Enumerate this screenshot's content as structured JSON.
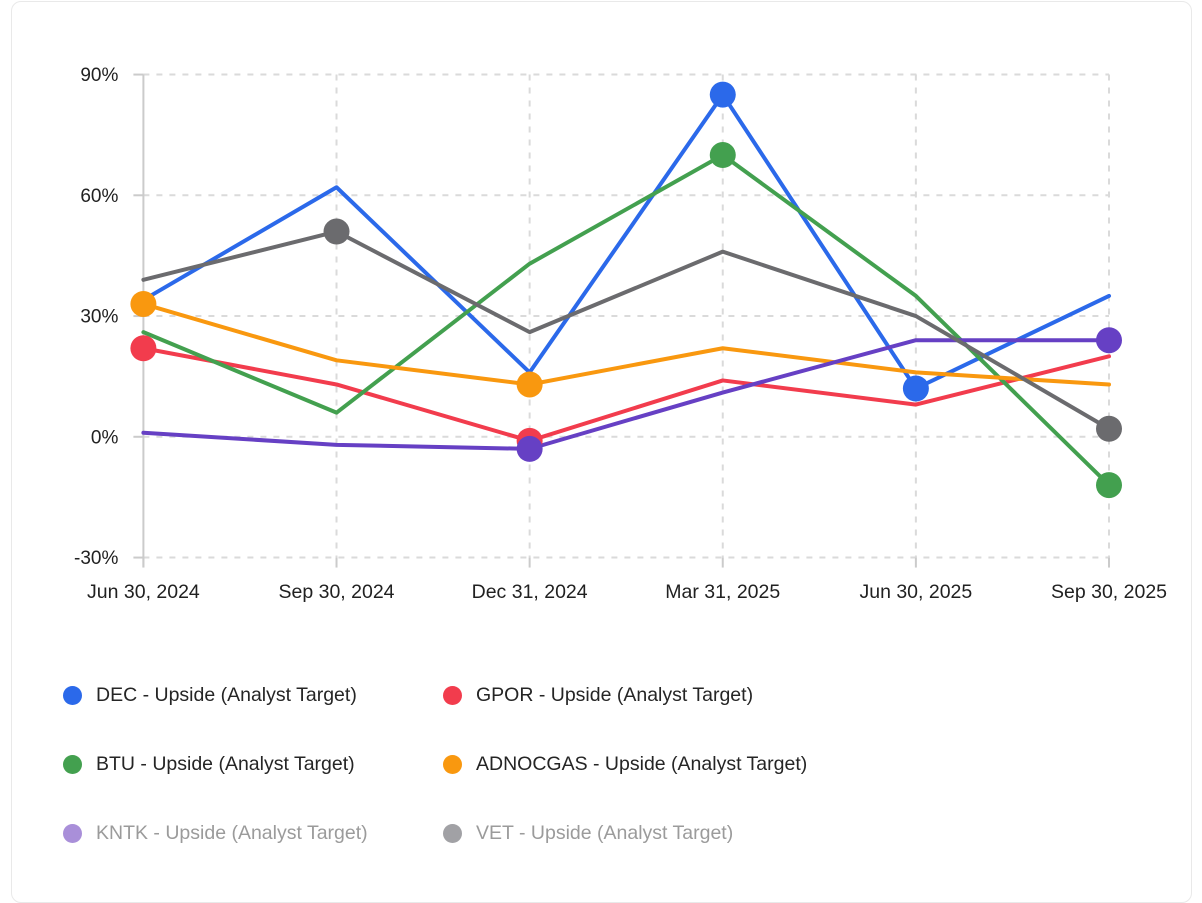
{
  "chart_data": {
    "type": "line",
    "title": "",
    "xlabel": "",
    "ylabel": "",
    "x_labels": [
      "Jun 30, 2024",
      "Sep 30, 2024",
      "Dec 31, 2024",
      "Mar 31, 2025",
      "Jun 30, 2025",
      "Sep 30, 2025"
    ],
    "y_tick_labels": [
      "90%",
      "60%",
      "30%",
      "0%",
      "-30%"
    ],
    "y_tick_values": [
      90,
      60,
      30,
      0,
      -30
    ],
    "ylim": [
      -30,
      90
    ],
    "grid": "dashed",
    "legend_position": "bottom-left-two-columns",
    "series": [
      {
        "ticker": "DEC",
        "label": "DEC - Upside (Analyst Target)",
        "color": "#2b69ea",
        "legend_dot_color": "#2b69ea",
        "muted": false,
        "values": [
          34,
          62,
          16,
          85,
          12,
          35
        ],
        "marker_indices": [
          3,
          4
        ]
      },
      {
        "ticker": "GPOR",
        "label": "GPOR - Upside (Analyst Target)",
        "color": "#f23c4d",
        "legend_dot_color": "#f23c4d",
        "muted": false,
        "values": [
          22,
          13,
          -1,
          14,
          8,
          20
        ],
        "marker_indices": [
          0,
          2
        ]
      },
      {
        "ticker": "BTU",
        "label": "BTU - Upside (Analyst Target)",
        "color": "#43a04f",
        "legend_dot_color": "#43a04f",
        "muted": false,
        "values": [
          26,
          6,
          43,
          70,
          35,
          -12
        ],
        "marker_indices": [
          3,
          5
        ]
      },
      {
        "ticker": "ADNOCGAS",
        "label": "ADNOCGAS - Upside (Analyst Target)",
        "color": "#f9980f",
        "legend_dot_color": "#f9980f",
        "muted": false,
        "values": [
          33,
          19,
          13,
          22,
          16,
          13
        ],
        "marker_indices": [
          0,
          2
        ]
      },
      {
        "ticker": "KNTK",
        "label": "KNTK - Upside (Analyst Target)",
        "color": "#6640c4",
        "legend_dot_color": "#a98fd9",
        "muted": true,
        "values": [
          1,
          -2,
          -3,
          11,
          24,
          24
        ],
        "marker_indices": [
          2,
          5
        ]
      },
      {
        "ticker": "VET",
        "label": "VET - Upside (Analyst Target)",
        "color": "#6b6b6e",
        "legend_dot_color": "#a1a1a5",
        "muted": true,
        "values": [
          39,
          51,
          26,
          46,
          30,
          2
        ],
        "marker_indices": [
          1,
          5
        ]
      }
    ],
    "style_colors": {
      "gridline": "#dadada",
      "axis_line": "#cbcbcb",
      "axis_text": "#212121",
      "legend_text": "#252525",
      "legend_text_muted": "#9b9b9b",
      "background": "#ffffff",
      "card_border": "#e9e9e9"
    }
  }
}
